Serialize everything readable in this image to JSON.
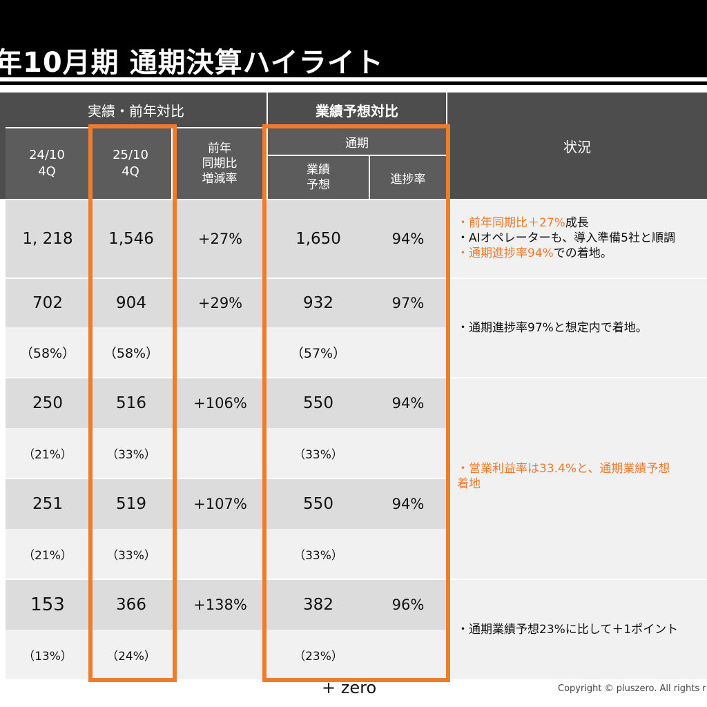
{
  "page": {
    "title": "年10月期 通期決算ハイライト"
  },
  "table": {
    "group_actual": "実績・前年対比",
    "group_forecast": "業績予想対比",
    "subgroup_fullyear": "通期",
    "col_prev": "24/10\n4Q",
    "col_curr": "25/10\n4Q",
    "col_yoy": "前年\n同期比\n増減率",
    "col_forecast": "業績\n予想",
    "col_progress": "進捗率",
    "col_status": "状況",
    "rows": [
      {
        "prev": "1, 218",
        "curr": "1,546",
        "yoy": "+27%",
        "forecast": "1,650",
        "progress": "94%"
      },
      {
        "prev": "702",
        "curr": "904",
        "yoy": "+29%",
        "forecast": "932",
        "progress": "97%"
      },
      {
        "prev": "（58%）",
        "curr": "（58%）",
        "yoy": "",
        "forecast": "（57%）",
        "progress": ""
      },
      {
        "prev": "250",
        "curr": "516",
        "yoy": "+106%",
        "forecast": "550",
        "progress": "94%"
      },
      {
        "prev": "（21%）",
        "curr": "（33%）",
        "yoy": "",
        "forecast": "（33%）",
        "progress": ""
      },
      {
        "prev": "251",
        "curr": "519",
        "yoy": "+107%",
        "forecast": "550",
        "progress": "94%"
      },
      {
        "prev": "（21%）",
        "curr": "（33%）",
        "yoy": "",
        "forecast": "（33%）",
        "progress": ""
      },
      {
        "prev": "153",
        "curr": "366",
        "yoy": "+138%",
        "forecast": "382",
        "progress": "96%"
      },
      {
        "prev": "（13%）",
        "curr": "（24%）",
        "yoy": "",
        "forecast": "（23%）",
        "progress": ""
      }
    ],
    "status": {
      "s1_a": "・前年同期比＋27%",
      "s1_b": "成長",
      "s1_c": "・AIオペレーターも、導入準備5社と順調",
      "s1_d": "・通期進捗率94%",
      "s1_e": "での着地。",
      "s2": "・通期進捗率97%と想定内で着地。",
      "s3_a": "・営業利益率は33.4%と、通期業績予想",
      "s3_b": "着地",
      "s4": "・通期業績予想23%に比して＋1ポイント"
    }
  },
  "footer": {
    "logo": "+ zero",
    "copyright": "Copyright © pluszero. All rights r"
  },
  "colors": {
    "accent": "#ee7b2e",
    "header_bg": "#000000",
    "table_header": "#4d4d4d",
    "row_dark": "#dcdcdc",
    "row_light": "#f1f1f1"
  }
}
